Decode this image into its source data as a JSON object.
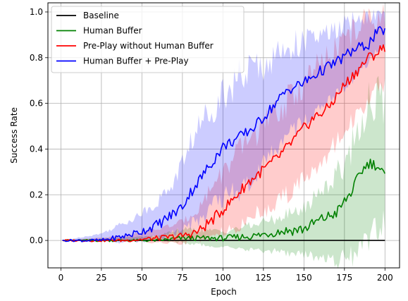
{
  "chart_data": {
    "type": "line",
    "xlabel": "Epoch",
    "ylabel": "Success Rate",
    "xlim": [
      -8,
      209
    ],
    "ylim": [
      -0.12,
      1.04
    ],
    "xticks": [
      0,
      25,
      50,
      75,
      100,
      125,
      150,
      175,
      200
    ],
    "yticks": [
      0.0,
      0.2,
      0.4,
      0.6,
      0.8,
      1.0
    ],
    "xtick_labels": [
      "0",
      "25",
      "50",
      "75",
      "100",
      "125",
      "150",
      "175",
      "200"
    ],
    "ytick_labels": [
      "0.0",
      "0.2",
      "0.4",
      "0.6",
      "0.8",
      "1.0"
    ],
    "grid": true,
    "legend_position": "top-left",
    "shaded_band": "variability range around each mean line",
    "series": [
      {
        "name": "Baseline",
        "color": "#000000",
        "x": [
          1,
          200
        ],
        "y": [
          0.0,
          0.0
        ],
        "lower": [
          0.0,
          0.0
        ],
        "upper": [
          0.0,
          0.0
        ]
      },
      {
        "name": "Human Buffer",
        "color": "#008000",
        "x": [
          1,
          60,
          75,
          100,
          120,
          135,
          150,
          160,
          170,
          180,
          185,
          190,
          195,
          200
        ],
        "y": [
          0.0,
          0.0,
          0.01,
          0.01,
          0.02,
          0.04,
          0.05,
          0.09,
          0.12,
          0.22,
          0.3,
          0.34,
          0.33,
          0.28
        ],
        "lower": [
          0.0,
          0.0,
          -0.01,
          -0.03,
          -0.04,
          -0.05,
          -0.06,
          -0.08,
          -0.09,
          -0.07,
          -0.04,
          0.01,
          0.05,
          0.09
        ],
        "upper": [
          0.0,
          0.02,
          0.05,
          0.04,
          0.07,
          0.1,
          0.14,
          0.22,
          0.28,
          0.42,
          0.52,
          0.6,
          0.64,
          0.58
        ]
      },
      {
        "name": "Pre-Play without Human Buffer",
        "color": "#ff0000",
        "x": [
          1,
          40,
          60,
          75,
          85,
          95,
          105,
          115,
          125,
          135,
          145,
          155,
          165,
          175,
          185,
          190,
          195,
          200
        ],
        "y": [
          0.0,
          0.0,
          0.01,
          0.02,
          0.04,
          0.1,
          0.17,
          0.25,
          0.31,
          0.37,
          0.45,
          0.53,
          0.58,
          0.68,
          0.76,
          0.8,
          0.82,
          0.85
        ],
        "lower": [
          0.0,
          0.0,
          -0.01,
          -0.01,
          0.0,
          0.02,
          0.05,
          0.09,
          0.13,
          0.18,
          0.23,
          0.31,
          0.38,
          0.48,
          0.57,
          0.62,
          0.66,
          0.68
        ],
        "upper": [
          0.0,
          0.02,
          0.05,
          0.08,
          0.14,
          0.26,
          0.34,
          0.44,
          0.5,
          0.57,
          0.65,
          0.73,
          0.79,
          0.88,
          0.94,
          0.97,
          0.98,
          0.99
        ]
      },
      {
        "name": "Human Buffer + Pre-Play",
        "color": "#0000ff",
        "x": [
          1,
          25,
          40,
          50,
          60,
          70,
          75,
          80,
          90,
          100,
          110,
          120,
          130,
          140,
          150,
          160,
          170,
          180,
          190,
          195,
          200
        ],
        "y": [
          0.0,
          0.0,
          0.02,
          0.04,
          0.07,
          0.12,
          0.15,
          0.21,
          0.31,
          0.41,
          0.45,
          0.5,
          0.58,
          0.66,
          0.69,
          0.74,
          0.78,
          0.83,
          0.86,
          0.91,
          0.92
        ],
        "lower": [
          0.0,
          0.0,
          -0.01,
          0.0,
          0.01,
          0.03,
          0.05,
          0.07,
          0.12,
          0.18,
          0.22,
          0.28,
          0.38,
          0.46,
          0.52,
          0.59,
          0.64,
          0.71,
          0.78,
          0.83,
          0.86
        ],
        "upper": [
          0.0,
          0.03,
          0.08,
          0.12,
          0.17,
          0.26,
          0.34,
          0.43,
          0.55,
          0.65,
          0.71,
          0.76,
          0.79,
          0.85,
          0.87,
          0.89,
          0.92,
          0.96,
          0.98,
          0.99,
          0.99
        ]
      }
    ]
  }
}
